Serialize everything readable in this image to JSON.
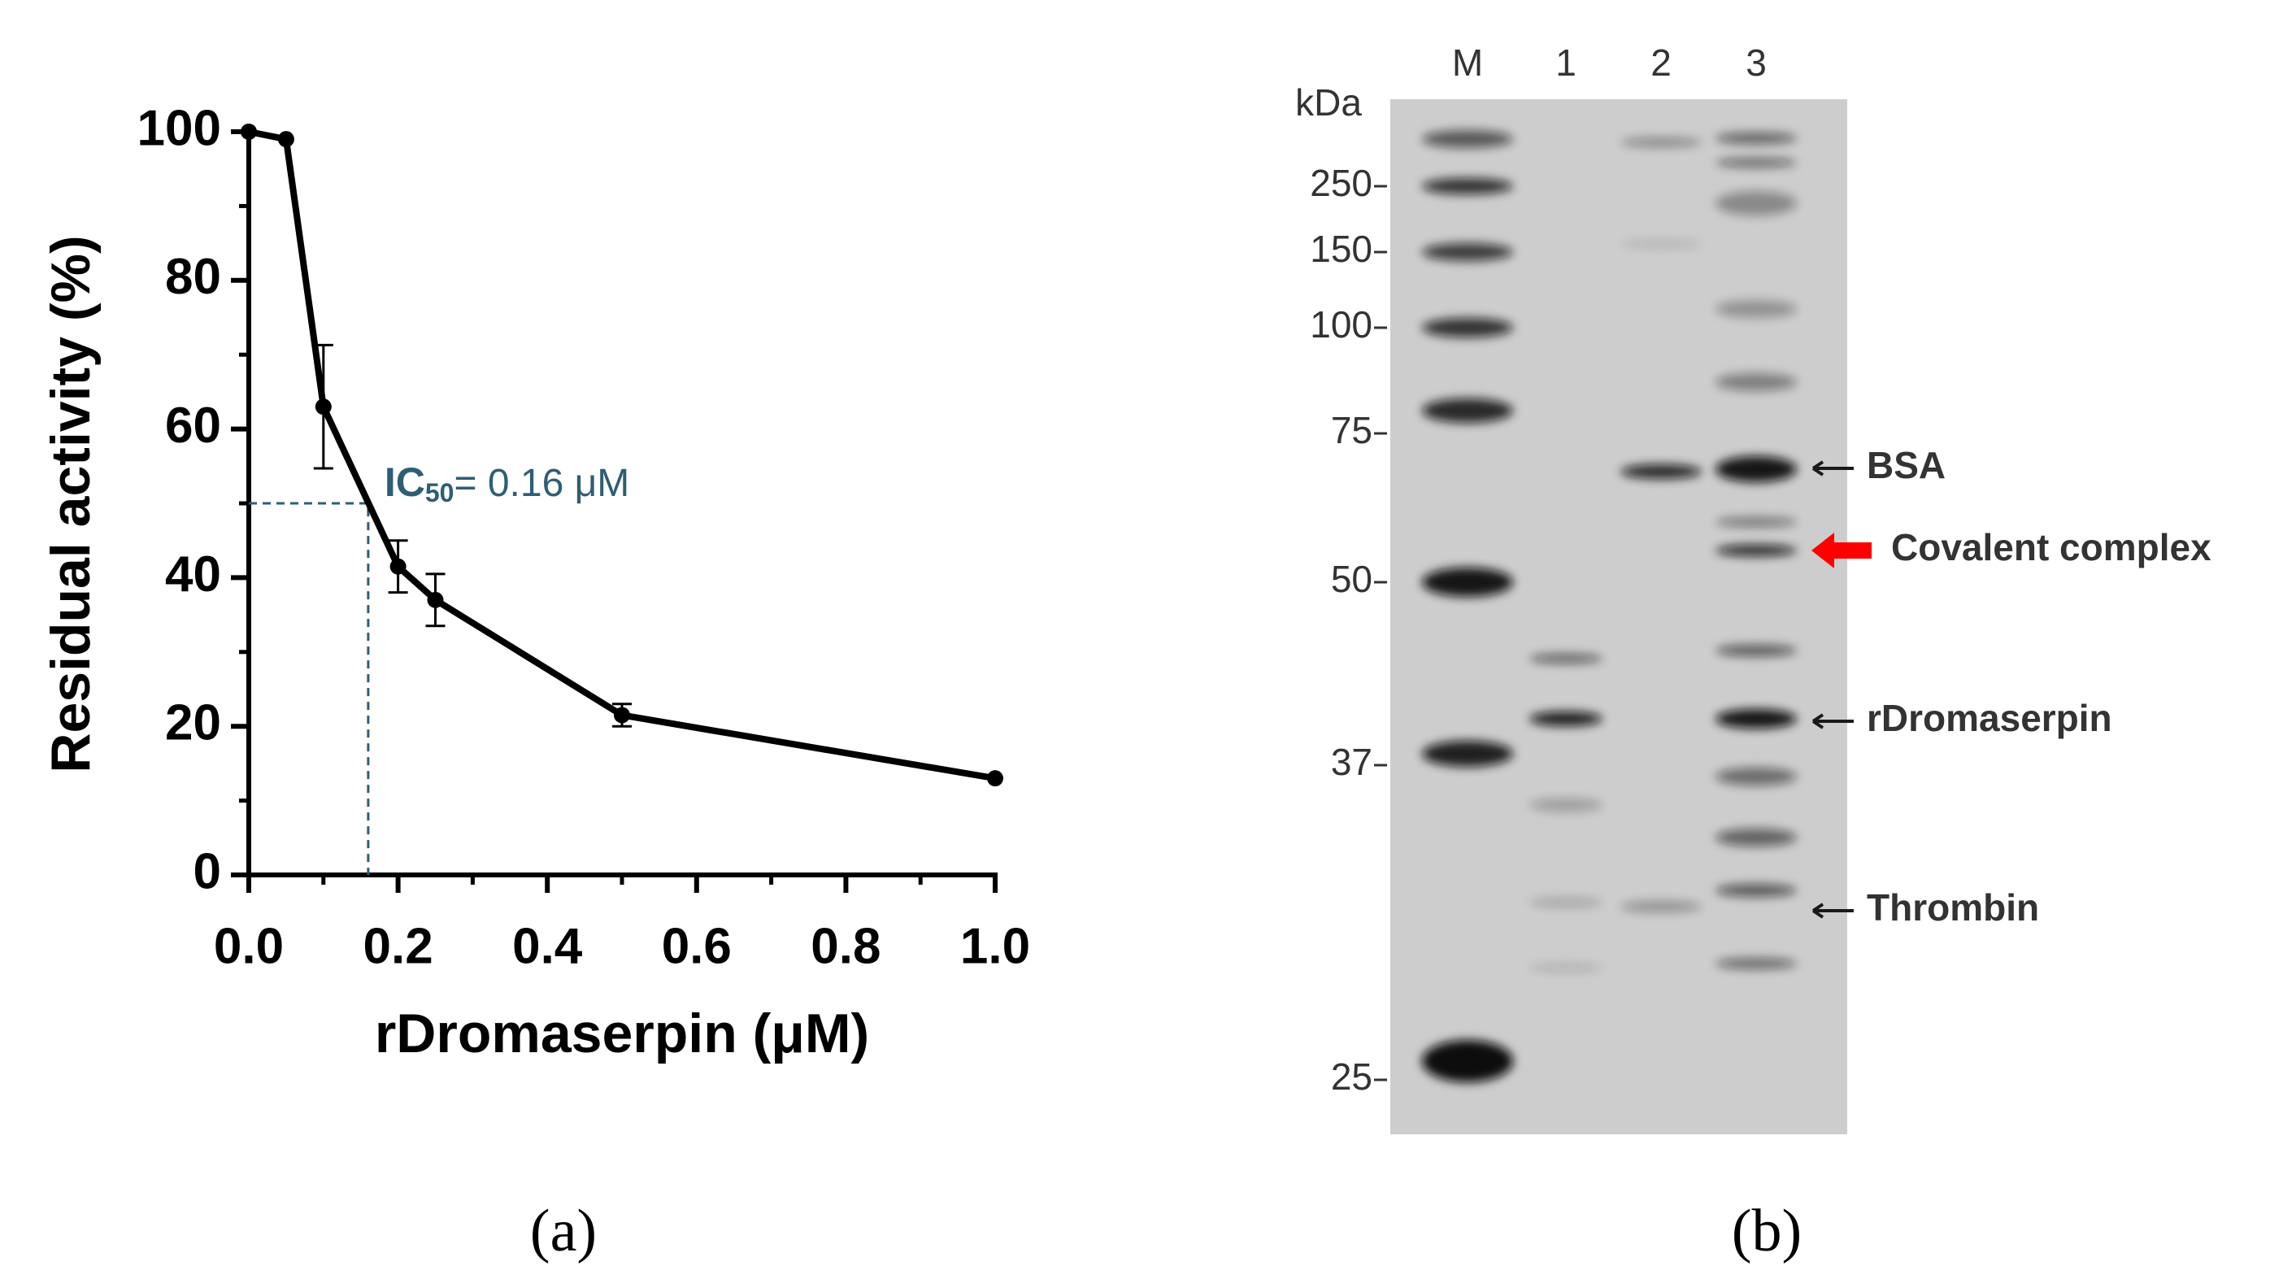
{
  "chart_data": {
    "type": "line",
    "y_label": "Residual activity (%)",
    "x_label": "rDromaserpin (μM)",
    "x": [
      0,
      0.05,
      0.1,
      0.2,
      0.25,
      0.5,
      1.0
    ],
    "values": [
      100,
      99,
      63,
      41.5,
      37,
      21.5,
      13
    ],
    "errors": [
      null,
      null,
      8.3,
      3.5,
      3.5,
      1.5,
      null
    ],
    "color": "#000000",
    "xlim": [
      0,
      1
    ],
    "ylim": [
      0,
      100
    ],
    "xticks": [
      {
        "value": 0,
        "label": "0.0"
      },
      0.2,
      0.4,
      0.6,
      0.8,
      {
        "value": 1,
        "label": "1.0"
      }
    ],
    "xticks_minor": [
      0.1,
      0.3,
      0.5,
      0.7,
      0.9
    ],
    "yticks": [
      0,
      20,
      40,
      60,
      80,
      100
    ],
    "yticks_minor": [
      10,
      30,
      50,
      70,
      90
    ],
    "ic50": {
      "x": 0.16,
      "y": 50,
      "color": "#2e5e74",
      "label": "IC",
      "subscript": "50",
      "text": "= 0.16 μM"
    }
  },
  "panel_labels": [
    "(a)",
    "(b)"
  ],
  "gel": {
    "unit": "kDa",
    "lanes": [
      "M",
      "1",
      "2",
      "3"
    ],
    "markers": [
      "250",
      "150",
      "100",
      "75",
      "50",
      "37",
      "25"
    ],
    "annotations": [
      {
        "text": "BSA",
        "color": "#1a1a1a"
      },
      {
        "text": "Covalent complex",
        "color": "#ff0000"
      },
      {
        "text": "rDromaserpin",
        "color": "#1a1a1a"
      },
      {
        "text": "Thrombin",
        "color": "#1a1a1a"
      }
    ]
  }
}
